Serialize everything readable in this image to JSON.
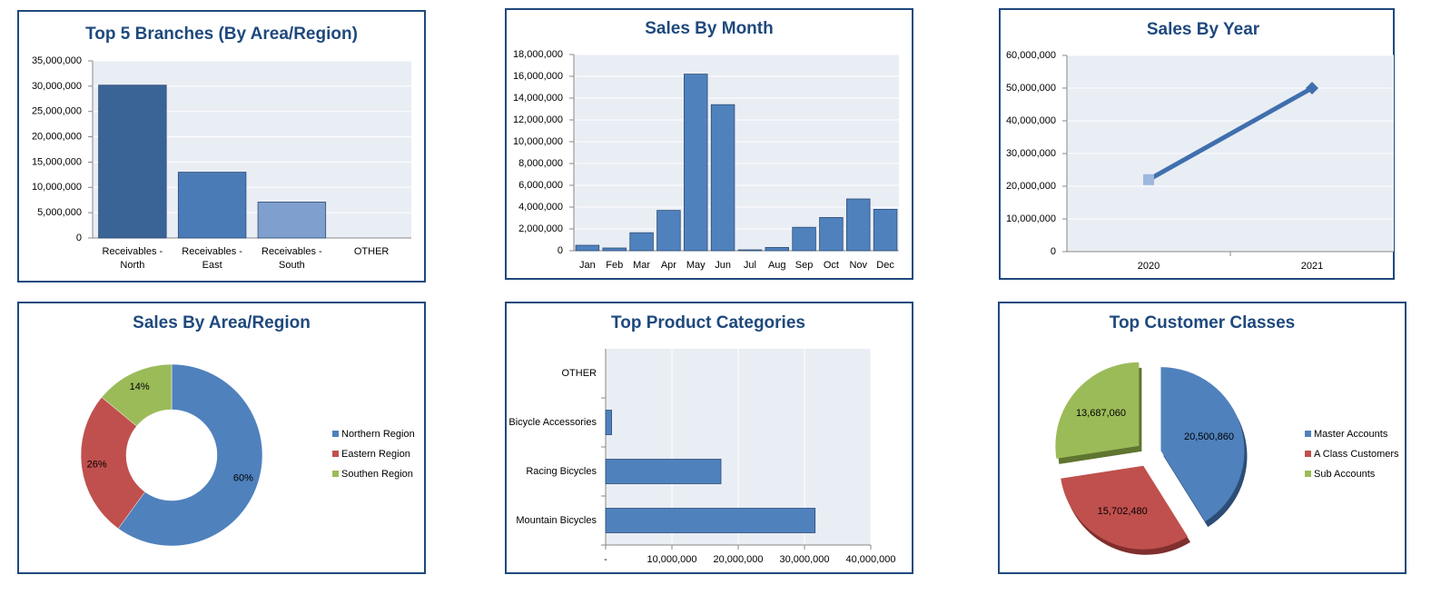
{
  "chart_data": [
    {
      "type": "bar",
      "title": "Top 5 Branches (By Area/Region)",
      "categories": [
        "Receivables - North",
        "Receivables - East",
        "Receivables - South",
        "OTHER"
      ],
      "values": [
        30200000,
        13000000,
        7100000,
        0
      ],
      "colors": [
        "#3a6496",
        "#4a7bb7",
        "#7f9fcf",
        "#4a7bb7"
      ],
      "ylim": [
        0,
        35000000
      ],
      "yticks": [
        0,
        {
          "value": 5000000,
          "label": "5,000,000"
        },
        {
          "value": 10000000,
          "label": "10,000,000"
        },
        {
          "value": 15000000,
          "label": "15,000,000"
        },
        {
          "value": 20000000,
          "label": "20,000,000"
        },
        {
          "value": 25000000,
          "label": "25,000,000"
        },
        {
          "value": 30000000,
          "label": "30,000,000"
        },
        {
          "value": 35000000,
          "label": "35,000,000"
        }
      ],
      "grid": true
    },
    {
      "type": "bar",
      "title": "Sales By Month",
      "categories": [
        "Jan",
        "Feb",
        "Mar",
        "Apr",
        "May",
        "Jun",
        "Jul",
        "Aug",
        "Sep",
        "Oct",
        "Nov",
        "Dec"
      ],
      "values": [
        500000,
        250000,
        1650000,
        3700000,
        16200000,
        13400000,
        80000,
        300000,
        2150000,
        3050000,
        4750000,
        3800000
      ],
      "color": "#4f81bd",
      "ylim": [
        0,
        18000000
      ],
      "yticks": [
        0,
        {
          "value": 2000000,
          "label": "2,000,000"
        },
        {
          "value": 4000000,
          "label": "4,000,000"
        },
        {
          "value": 6000000,
          "label": "6,000,000"
        },
        {
          "value": 8000000,
          "label": "8,000,000"
        },
        {
          "value": 10000000,
          "label": "10,000,000"
        },
        {
          "value": 12000000,
          "label": "12,000,000"
        },
        {
          "value": 14000000,
          "label": "14,000,000"
        },
        {
          "value": 16000000,
          "label": "16,000,000"
        },
        {
          "value": 18000000,
          "label": "18,000,000"
        }
      ],
      "grid": true
    },
    {
      "type": "line",
      "title": "Sales By Year",
      "categories": [
        "2020",
        "2021"
      ],
      "values": [
        22000000,
        50000000
      ],
      "color": "#3f6fad",
      "ylim": [
        0,
        60000000
      ],
      "yticks": [
        0,
        {
          "value": 10000000,
          "label": "10,000,000"
        },
        {
          "value": 20000000,
          "label": "20,000,000"
        },
        {
          "value": 30000000,
          "label": "30,000,000"
        },
        {
          "value": 40000000,
          "label": "40,000,000"
        },
        {
          "value": 50000000,
          "label": "50,000,000"
        },
        {
          "value": 60000000,
          "label": "60,000,000"
        }
      ],
      "grid": true
    },
    {
      "type": "donut",
      "title": "Sales By Area/Region",
      "categories": [
        "Northern Region",
        "Eastern Region",
        "Southen Region"
      ],
      "values": [
        60,
        26,
        14
      ],
      "value_labels": [
        "60%",
        "26%",
        "14%"
      ],
      "colors": [
        "#4f81bd",
        "#c0504d",
        "#9bbb59"
      ],
      "legend": "right"
    },
    {
      "type": "hbar",
      "title": "Top Product Categories",
      "categories": [
        "Mountain Bicycles",
        "Racing Bicycles",
        "Bicycle Accessories",
        "OTHER"
      ],
      "values": [
        31600000,
        17400000,
        900000,
        0
      ],
      "color": "#4f81bd",
      "xlim": [
        0,
        40000000
      ],
      "xticks": [
        {
          "value": 0,
          "label": "-"
        },
        {
          "value": 10000000,
          "label": "10,000,000"
        },
        {
          "value": 20000000,
          "label": "20,000,000"
        },
        {
          "value": 30000000,
          "label": "30,000,000"
        },
        {
          "value": 40000000,
          "label": "40,000,000"
        }
      ],
      "grid": true
    },
    {
      "type": "pie",
      "title": "Top Customer Classes",
      "categories": [
        "Master Accounts",
        "A Class Customers",
        "Sub Accounts"
      ],
      "values": [
        20500860,
        15702480,
        13687060
      ],
      "value_labels": [
        "20,500,860",
        "15,702,480",
        "13,687,060"
      ],
      "colors": [
        "#4f81bd",
        "#c0504d",
        "#9bbb59"
      ],
      "legend": "right"
    }
  ]
}
